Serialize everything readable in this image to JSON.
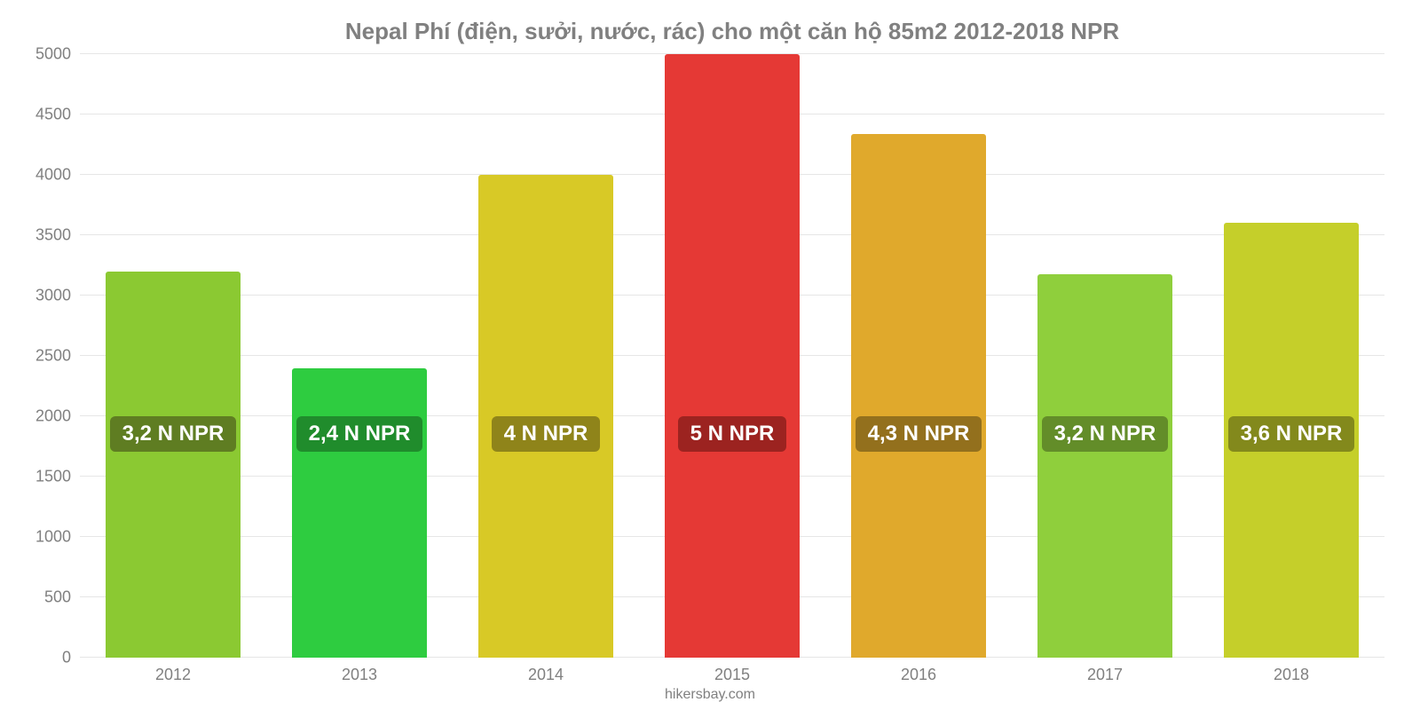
{
  "chart": {
    "type": "bar",
    "title": "Nepal Phí (điện, sưởi, nước, rác) cho một căn hộ 85m2 2012-2018 NPR",
    "title_fontsize": 26,
    "title_color": "#808080",
    "background_color": "#ffffff",
    "grid_color": "#e6e6e6",
    "axis_label_color": "#808080",
    "axis_label_fontsize": 18,
    "ylim": [
      0,
      5000
    ],
    "ytick_step": 500,
    "yticks": [
      0,
      500,
      1000,
      1500,
      2000,
      2500,
      3000,
      3500,
      4000,
      4500,
      5000
    ],
    "categories": [
      "2012",
      "2013",
      "2014",
      "2015",
      "2016",
      "2017",
      "2018"
    ],
    "values": [
      3200,
      2400,
      4000,
      5000,
      4340,
      3180,
      3600
    ],
    "bar_colors": [
      "#8bc932",
      "#2ecc40",
      "#d8c926",
      "#e53935",
      "#e0a92c",
      "#8fcf3c",
      "#c5cf2a"
    ],
    "bar_width_pct": 72,
    "bar_radius": 3,
    "bar_labels": [
      "3,2 N NPR",
      "2,4 N NPR",
      "4 N NPR",
      "5 N NPR",
      "4,3 N NPR",
      "3,2 N NPR",
      "3,6 N NPR"
    ],
    "bar_label_fontsize": 24,
    "bar_label_bg": [
      "#5f7d22",
      "#208c2c",
      "#8f841a",
      "#9c2320",
      "#93701d",
      "#638d29",
      "#83891c"
    ],
    "bar_label_center_value": 1850,
    "bar_label_min_center": 1400,
    "footer": "hikersbay.com",
    "footer_fontsize": 16
  }
}
